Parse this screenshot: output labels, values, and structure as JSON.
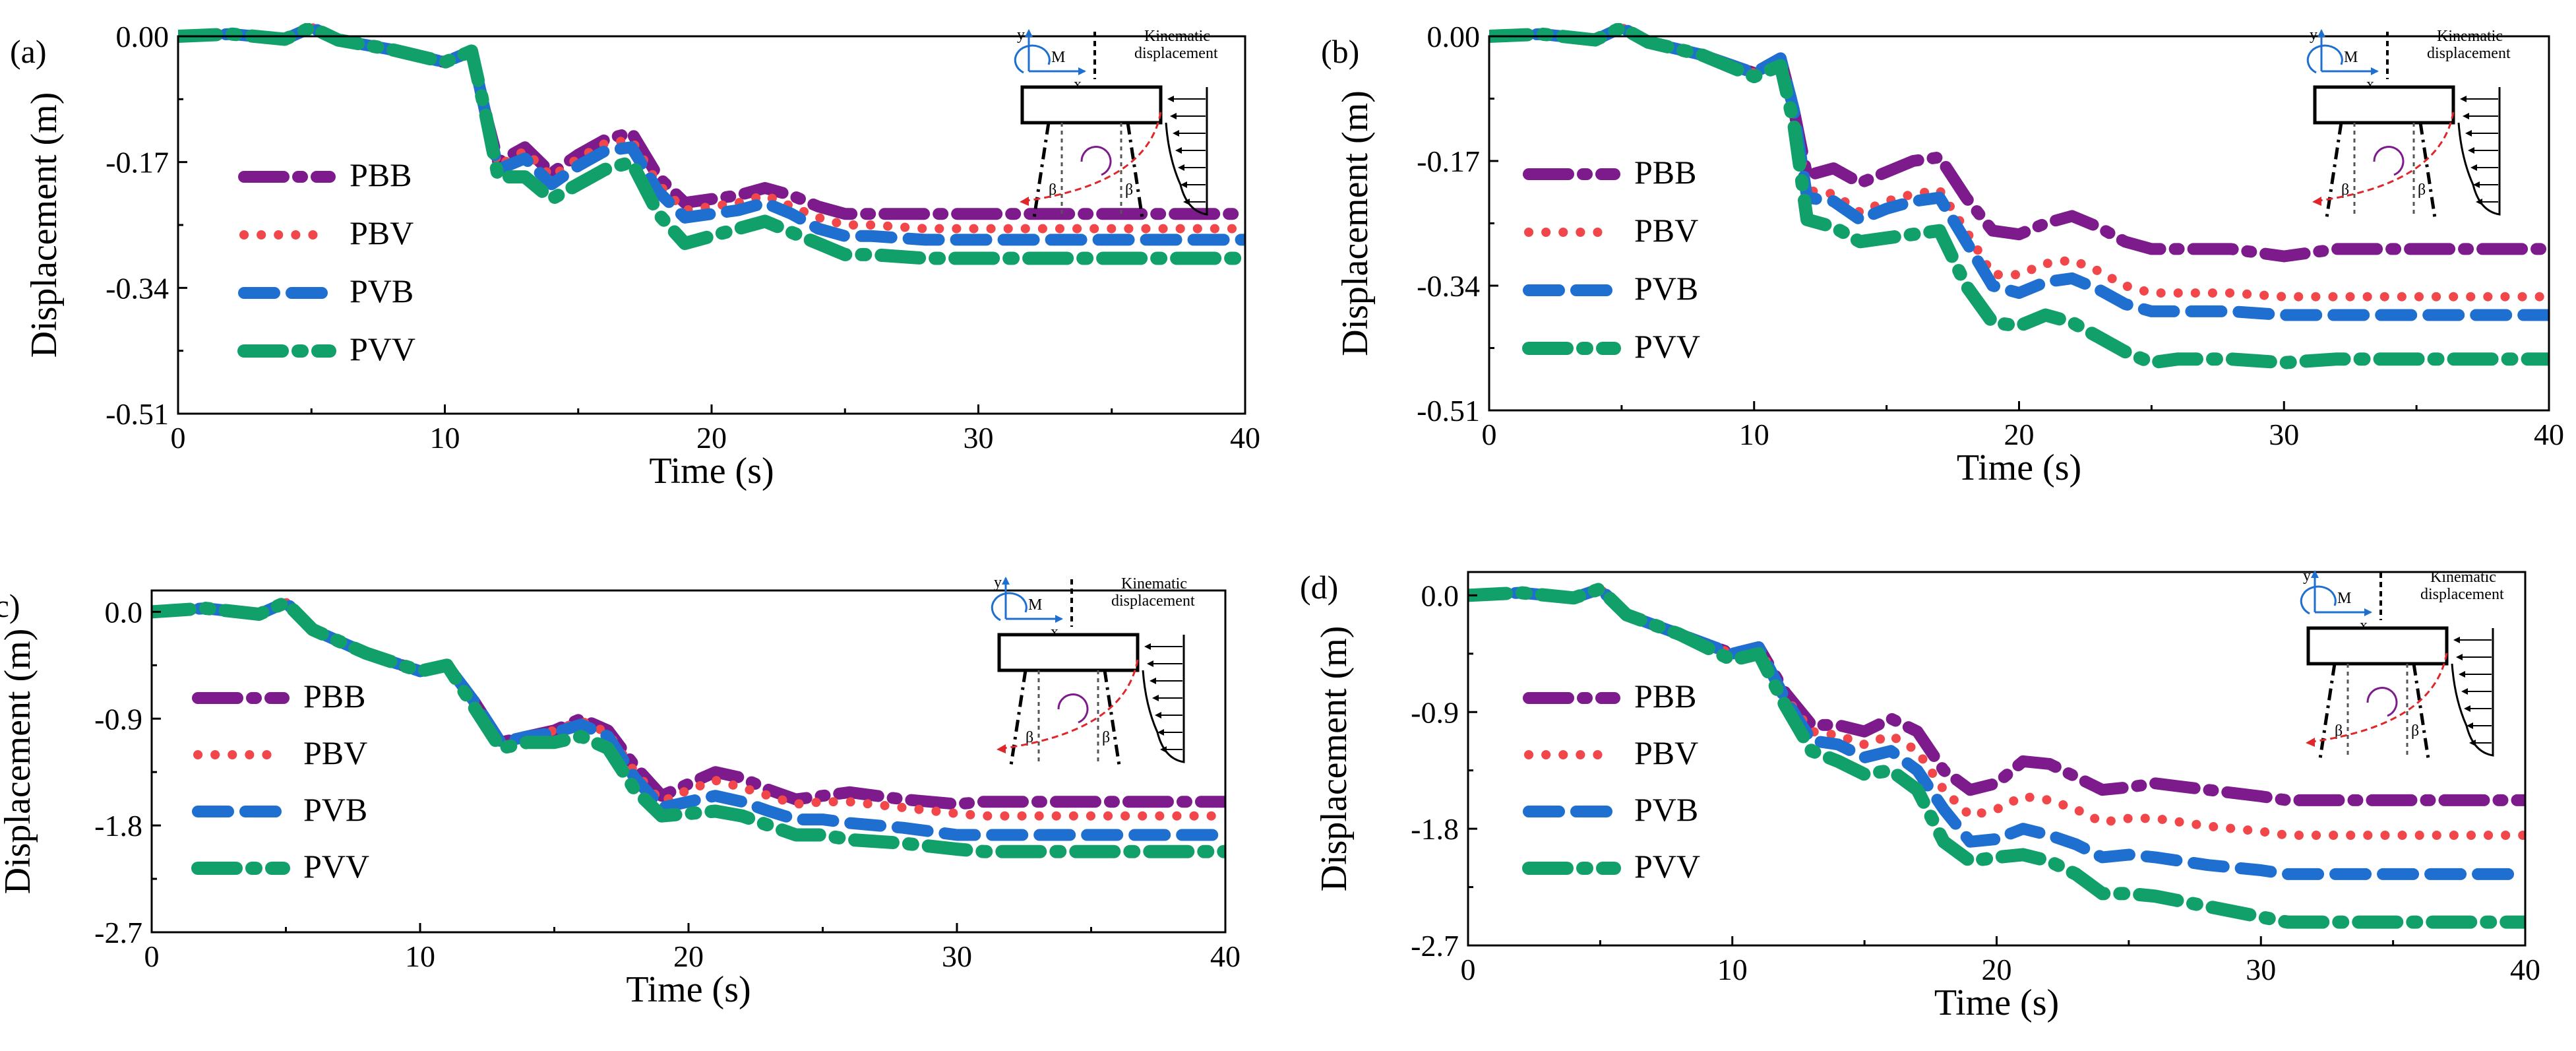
{
  "figure": {
    "series_colors": {
      "PBB": "#7d1a8c",
      "PBV": "#f2474a",
      "PVB": "#1f6fd1",
      "PVV": "#12a06a"
    },
    "diagram_text": {
      "y": "y",
      "x": "x",
      "m": "M",
      "beta": "β",
      "kinematic1": "Kinematic",
      "kinematic2": "displacement"
    }
  },
  "chart_data": [
    {
      "type": "line",
      "panel_label": "(a)",
      "xlabel": "Time (s)",
      "ylabel": "Displacement (m)",
      "xlim": [
        0,
        40
      ],
      "ylim": [
        -0.51,
        0.0
      ],
      "xticks": [
        0,
        10,
        20,
        30,
        40
      ],
      "xtick_labels": [
        "0",
        "10",
        "20",
        "30",
        "40"
      ],
      "yticks": [
        0.0,
        -0.17,
        -0.34,
        -0.51
      ],
      "ytick_labels": [
        "0.00",
        "-0.17",
        "-0.34",
        "-0.51"
      ],
      "legend": [
        "PBB",
        "PBV",
        "PVB",
        "PVV"
      ],
      "x": [
        0,
        2,
        4,
        5,
        6,
        8,
        10,
        11,
        11.5,
        12,
        13,
        14,
        15,
        16,
        17,
        18,
        19,
        20,
        21,
        22,
        23,
        24,
        25,
        26,
        28,
        30,
        32,
        34,
        36,
        38,
        40
      ],
      "series": [
        {
          "name": "PBB",
          "values": [
            0,
            0.003,
            -0.004,
            0.012,
            -0.005,
            -0.018,
            -0.035,
            -0.02,
            -0.1,
            -0.17,
            -0.15,
            -0.185,
            -0.16,
            -0.14,
            -0.13,
            -0.19,
            -0.225,
            -0.22,
            -0.215,
            -0.205,
            -0.215,
            -0.23,
            -0.24,
            -0.24,
            -0.24,
            -0.24,
            -0.24,
            -0.24,
            -0.24,
            -0.24,
            -0.24
          ]
        },
        {
          "name": "PBV",
          "values": [
            0,
            0.003,
            -0.004,
            0.012,
            -0.005,
            -0.018,
            -0.035,
            -0.02,
            -0.1,
            -0.175,
            -0.155,
            -0.19,
            -0.165,
            -0.145,
            -0.14,
            -0.2,
            -0.235,
            -0.23,
            -0.225,
            -0.215,
            -0.23,
            -0.245,
            -0.255,
            -0.255,
            -0.26,
            -0.26,
            -0.26,
            -0.26,
            -0.26,
            -0.26,
            -0.26
          ]
        },
        {
          "name": "PVB",
          "values": [
            0,
            0.003,
            -0.004,
            0.012,
            -0.005,
            -0.018,
            -0.035,
            -0.02,
            -0.1,
            -0.18,
            -0.165,
            -0.2,
            -0.175,
            -0.155,
            -0.15,
            -0.21,
            -0.245,
            -0.24,
            -0.235,
            -0.225,
            -0.24,
            -0.26,
            -0.27,
            -0.27,
            -0.275,
            -0.275,
            -0.275,
            -0.275,
            -0.275,
            -0.275,
            -0.275
          ]
        },
        {
          "name": "PVV",
          "values": [
            0,
            0.003,
            -0.004,
            0.012,
            -0.005,
            -0.018,
            -0.035,
            -0.02,
            -0.1,
            -0.19,
            -0.19,
            -0.22,
            -0.2,
            -0.18,
            -0.17,
            -0.24,
            -0.28,
            -0.27,
            -0.26,
            -0.25,
            -0.265,
            -0.28,
            -0.295,
            -0.295,
            -0.3,
            -0.3,
            -0.3,
            -0.3,
            -0.3,
            -0.3,
            -0.3
          ]
        }
      ]
    },
    {
      "type": "line",
      "panel_label": "(b)",
      "xlabel": "Time (s)",
      "ylabel": "Displacement (m)",
      "xlim": [
        0,
        40
      ],
      "ylim": [
        -0.51,
        0.0
      ],
      "xticks": [
        0,
        10,
        20,
        30,
        40
      ],
      "xtick_labels": [
        "0",
        "10",
        "20",
        "30",
        "40"
      ],
      "yticks": [
        0.0,
        -0.17,
        -0.34,
        -0.51
      ],
      "ytick_labels": [
        "0.00",
        "-0.17",
        "-0.34",
        "-0.51"
      ],
      "legend": [
        "PBB",
        "PBV",
        "PVB",
        "PVV"
      ],
      "x": [
        0,
        2,
        4,
        5,
        6,
        8,
        10,
        11,
        11.5,
        12,
        13,
        14,
        15,
        16,
        17,
        18,
        19,
        20,
        21,
        22,
        23,
        24,
        25,
        26,
        28,
        30,
        32,
        34,
        36,
        38,
        40
      ],
      "series": [
        {
          "name": "PBB",
          "values": [
            0,
            0.003,
            -0.005,
            0.012,
            -0.008,
            -0.025,
            -0.05,
            -0.03,
            -0.1,
            -0.19,
            -0.18,
            -0.2,
            -0.185,
            -0.17,
            -0.165,
            -0.22,
            -0.265,
            -0.27,
            -0.255,
            -0.245,
            -0.26,
            -0.28,
            -0.29,
            -0.29,
            -0.29,
            -0.3,
            -0.29,
            -0.29,
            -0.29,
            -0.29,
            -0.29
          ]
        },
        {
          "name": "PBV",
          "values": [
            0,
            0.003,
            -0.005,
            0.012,
            -0.008,
            -0.025,
            -0.05,
            -0.03,
            -0.1,
            -0.21,
            -0.215,
            -0.24,
            -0.225,
            -0.215,
            -0.21,
            -0.265,
            -0.325,
            -0.325,
            -0.31,
            -0.305,
            -0.32,
            -0.34,
            -0.35,
            -0.35,
            -0.35,
            -0.355,
            -0.355,
            -0.355,
            -0.355,
            -0.355,
            -0.355
          ]
        },
        {
          "name": "PVB",
          "values": [
            0,
            0.003,
            -0.005,
            0.012,
            -0.008,
            -0.025,
            -0.05,
            -0.03,
            -0.1,
            -0.22,
            -0.225,
            -0.25,
            -0.235,
            -0.225,
            -0.22,
            -0.28,
            -0.34,
            -0.35,
            -0.335,
            -0.33,
            -0.345,
            -0.365,
            -0.375,
            -0.375,
            -0.375,
            -0.38,
            -0.38,
            -0.38,
            -0.38,
            -0.38,
            -0.38
          ]
        },
        {
          "name": "PVV",
          "values": [
            0,
            0.003,
            -0.005,
            0.012,
            -0.008,
            -0.025,
            -0.055,
            -0.04,
            -0.12,
            -0.25,
            -0.26,
            -0.28,
            -0.275,
            -0.27,
            -0.265,
            -0.34,
            -0.39,
            -0.395,
            -0.38,
            -0.39,
            -0.41,
            -0.43,
            -0.445,
            -0.44,
            -0.44,
            -0.445,
            -0.44,
            -0.44,
            -0.44,
            -0.44,
            -0.44
          ]
        }
      ]
    },
    {
      "type": "line",
      "panel_label": "(c)",
      "xlabel": "Time (s)",
      "ylabel": "Displacement (m)",
      "xlim": [
        0,
        40
      ],
      "ylim": [
        -2.7,
        0.18
      ],
      "xticks": [
        0,
        10,
        20,
        30,
        40
      ],
      "xtick_labels": [
        "0",
        "10",
        "20",
        "30",
        "40"
      ],
      "yticks": [
        0.0,
        -0.9,
        -1.8,
        -2.7
      ],
      "ytick_labels": [
        "0.0",
        "-0.9",
        "-1.8",
        "-2.7"
      ],
      "legend": [
        "PBB",
        "PBV",
        "PVB",
        "PVV"
      ],
      "x": [
        0,
        2,
        4,
        5,
        6,
        8,
        10,
        11,
        12,
        13,
        14,
        15,
        16,
        17,
        18,
        19,
        20,
        21,
        22,
        23,
        24,
        25,
        26,
        28,
        30,
        31,
        32,
        34,
        36,
        38,
        40
      ],
      "series": [
        {
          "name": "PBB",
          "values": [
            0,
            0.03,
            -0.02,
            0.08,
            -0.15,
            -0.35,
            -0.5,
            -0.45,
            -0.75,
            -1.1,
            -1.05,
            -1.0,
            -0.9,
            -1.0,
            -1.3,
            -1.55,
            -1.45,
            -1.35,
            -1.4,
            -1.5,
            -1.58,
            -1.55,
            -1.52,
            -1.58,
            -1.62,
            -1.6,
            -1.6,
            -1.6,
            -1.6,
            -1.6,
            -1.6
          ]
        },
        {
          "name": "PBV",
          "values": [
            0,
            0.03,
            -0.02,
            0.08,
            -0.15,
            -0.35,
            -0.5,
            -0.45,
            -0.75,
            -1.1,
            -1.05,
            -1.0,
            -0.92,
            -1.02,
            -1.35,
            -1.6,
            -1.5,
            -1.42,
            -1.48,
            -1.55,
            -1.62,
            -1.6,
            -1.6,
            -1.65,
            -1.7,
            -1.72,
            -1.72,
            -1.72,
            -1.72,
            -1.72,
            -1.72
          ]
        },
        {
          "name": "PVB",
          "values": [
            0,
            0.03,
            -0.02,
            0.08,
            -0.15,
            -0.35,
            -0.5,
            -0.45,
            -0.75,
            -1.1,
            -1.05,
            -1.02,
            -0.95,
            -1.05,
            -1.4,
            -1.65,
            -1.6,
            -1.55,
            -1.6,
            -1.68,
            -1.75,
            -1.75,
            -1.78,
            -1.82,
            -1.88,
            -1.88,
            -1.88,
            -1.88,
            -1.88,
            -1.88,
            -1.88
          ]
        },
        {
          "name": "PVV",
          "values": [
            0,
            0.03,
            -0.02,
            0.08,
            -0.15,
            -0.35,
            -0.5,
            -0.45,
            -0.8,
            -1.15,
            -1.1,
            -1.1,
            -1.05,
            -1.15,
            -1.5,
            -1.72,
            -1.7,
            -1.68,
            -1.72,
            -1.8,
            -1.88,
            -1.88,
            -1.92,
            -1.95,
            -2.0,
            -2.02,
            -2.02,
            -2.02,
            -2.02,
            -2.02,
            -2.02
          ]
        }
      ]
    },
    {
      "type": "line",
      "panel_label": "(d)",
      "xlabel": "Time (s)",
      "ylabel": "Displacement (m)",
      "xlim": [
        0,
        40
      ],
      "ylim": [
        -2.7,
        0.18
      ],
      "xticks": [
        0,
        10,
        20,
        30,
        40
      ],
      "xtick_labels": [
        "0",
        "10",
        "20",
        "30",
        "40"
      ],
      "yticks": [
        0.0,
        -0.9,
        -1.8,
        -2.7
      ],
      "ytick_labels": [
        "0.0",
        "-0.9",
        "-1.8",
        "-2.7"
      ],
      "legend": [
        "PBB",
        "PBV",
        "PVB",
        "PVV"
      ],
      "x": [
        0,
        2,
        4,
        5,
        6,
        8,
        10,
        11,
        12,
        13,
        14,
        15,
        16,
        17,
        18,
        19,
        20,
        21,
        22,
        23,
        24,
        25,
        26,
        28,
        30,
        31,
        32,
        34,
        36,
        38,
        40
      ],
      "series": [
        {
          "name": "PBB",
          "values": [
            0,
            0.02,
            -0.02,
            0.05,
            -0.15,
            -0.3,
            -0.45,
            -0.4,
            -0.75,
            -1.0,
            -1.0,
            -1.05,
            -0.95,
            -1.05,
            -1.35,
            -1.5,
            -1.45,
            -1.28,
            -1.3,
            -1.4,
            -1.5,
            -1.48,
            -1.45,
            -1.5,
            -1.55,
            -1.58,
            -1.58,
            -1.58,
            -1.58,
            -1.58,
            -1.58
          ]
        },
        {
          "name": "PBV",
          "values": [
            0,
            0.02,
            -0.02,
            0.05,
            -0.15,
            -0.3,
            -0.45,
            -0.4,
            -0.78,
            -1.05,
            -1.08,
            -1.15,
            -1.08,
            -1.2,
            -1.5,
            -1.7,
            -1.65,
            -1.55,
            -1.58,
            -1.65,
            -1.75,
            -1.72,
            -1.72,
            -1.78,
            -1.82,
            -1.85,
            -1.85,
            -1.85,
            -1.85,
            -1.85,
            -1.85
          ]
        },
        {
          "name": "PVB",
          "values": [
            0,
            0.02,
            -0.02,
            0.05,
            -0.15,
            -0.3,
            -0.45,
            -0.4,
            -0.8,
            -1.12,
            -1.15,
            -1.25,
            -1.2,
            -1.35,
            -1.65,
            -1.9,
            -1.88,
            -1.8,
            -1.85,
            -1.92,
            -2.02,
            -2.0,
            -2.02,
            -2.08,
            -2.12,
            -2.15,
            -2.15,
            -2.15,
            -2.15,
            -2.15,
            -2.15
          ]
        },
        {
          "name": "PVV",
          "values": [
            0,
            0.02,
            -0.02,
            0.05,
            -0.15,
            -0.3,
            -0.5,
            -0.45,
            -0.85,
            -1.2,
            -1.28,
            -1.38,
            -1.35,
            -1.5,
            -1.9,
            -2.05,
            -2.02,
            -2.0,
            -2.05,
            -2.15,
            -2.3,
            -2.3,
            -2.32,
            -2.4,
            -2.48,
            -2.52,
            -2.52,
            -2.52,
            -2.52,
            -2.52,
            -2.52
          ]
        }
      ]
    }
  ]
}
